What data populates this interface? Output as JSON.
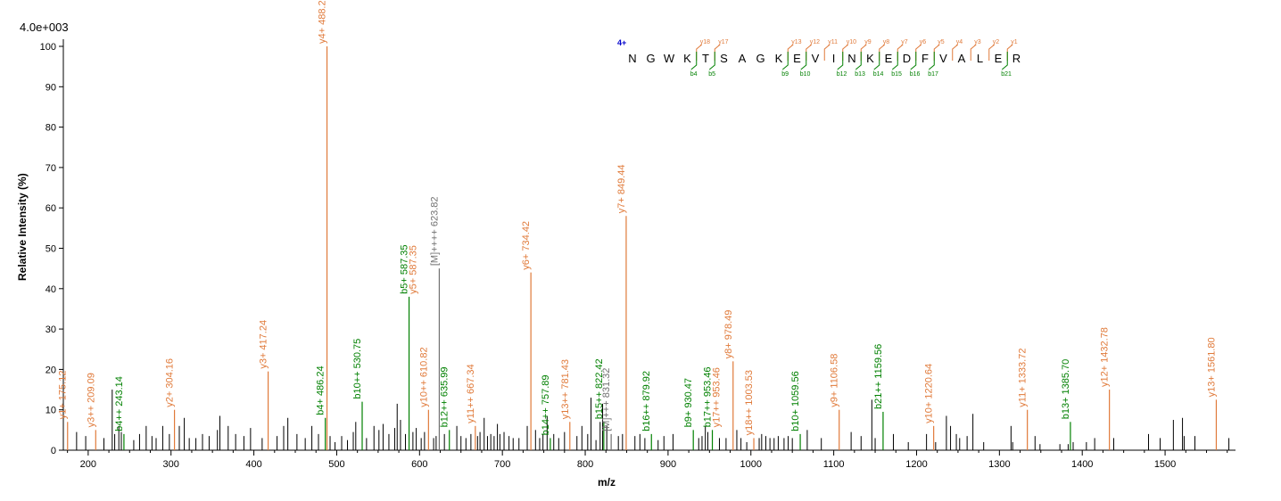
{
  "chart_data": {
    "type": "bar",
    "scale_label": "4.0e+003",
    "xlabel": "m/z",
    "ylabel": "Relative   Intensity (%)",
    "xlim": [
      170,
      1585
    ],
    "ylim": [
      0,
      100
    ],
    "x_ticks": [
      200,
      300,
      400,
      500,
      600,
      700,
      800,
      900,
      1000,
      1100,
      1200,
      1300,
      1400,
      1500
    ],
    "y_ticks": [
      0,
      10,
      20,
      30,
      40,
      50,
      60,
      70,
      80,
      90,
      100
    ],
    "colors": {
      "y_ion": "#e07a3a",
      "b_ion": "#008000",
      "precursor": "#707070",
      "unassigned": "#000000"
    },
    "labeled_peaks": [
      {
        "mz": 175.12,
        "intensity": 7,
        "type": "y",
        "label": "y1+ 175.12"
      },
      {
        "mz": 209.09,
        "intensity": 5,
        "type": "y",
        "label": "y3++ 209.09"
      },
      {
        "mz": 243.14,
        "intensity": 4,
        "type": "b",
        "label": "b4++ 243.14"
      },
      {
        "mz": 304.16,
        "intensity": 10,
        "type": "y",
        "label": "y2+ 304.16"
      },
      {
        "mz": 417.24,
        "intensity": 19.5,
        "type": "y",
        "label": "y3+ 417.24"
      },
      {
        "mz": 486.24,
        "intensity": 8,
        "type": "b",
        "label": "b4+ 486.24"
      },
      {
        "mz": 488.28,
        "intensity": 100,
        "type": "y",
        "label": "y4+ 488.28"
      },
      {
        "mz": 530.75,
        "intensity": 12,
        "type": "b",
        "label": "b10++ 530.75"
      },
      {
        "mz": 587.35,
        "intensity": 38,
        "type": "b",
        "label": "b5+ 587.35"
      },
      {
        "mz": 587.35,
        "intensity": 38,
        "type": "y",
        "label": "y5+ 587.35"
      },
      {
        "mz": 610.82,
        "intensity": 10,
        "type": "y",
        "label": "y10++ 610.82"
      },
      {
        "mz": 623.82,
        "intensity": 45,
        "type": "precursor",
        "label": "[M]++++ 623.82"
      },
      {
        "mz": 635.99,
        "intensity": 5,
        "type": "b",
        "label": "b12++ 635.99"
      },
      {
        "mz": 667.34,
        "intensity": 6,
        "type": "y",
        "label": "y11++ 667.34"
      },
      {
        "mz": 734.42,
        "intensity": 44,
        "type": "y",
        "label": "y6+ 734.42"
      },
      {
        "mz": 757.89,
        "intensity": 3,
        "type": "b",
        "label": "b14++ 757.89"
      },
      {
        "mz": 781.43,
        "intensity": 7,
        "type": "y",
        "label": "y13++ 781.43"
      },
      {
        "mz": 822.42,
        "intensity": 7,
        "type": "b",
        "label": "b15++ 822.42"
      },
      {
        "mz": 831.32,
        "intensity": 4,
        "type": "precursor",
        "label": "[M]+++ 831.32"
      },
      {
        "mz": 849.44,
        "intensity": 58,
        "type": "y",
        "label": "y7+ 849.44"
      },
      {
        "mz": 879.92,
        "intensity": 4,
        "type": "b",
        "label": "b16++ 879.92"
      },
      {
        "mz": 930.47,
        "intensity": 5,
        "type": "b",
        "label": "b9+ 930.47"
      },
      {
        "mz": 953.46,
        "intensity": 5,
        "type": "b",
        "label": "b17++ 953.46"
      },
      {
        "mz": 953.46,
        "intensity": 5,
        "type": "y",
        "label": "y17++ 953.46"
      },
      {
        "mz": 978.49,
        "intensity": 22,
        "type": "y",
        "label": "y8+ 978.49"
      },
      {
        "mz": 1003.53,
        "intensity": 3,
        "type": "y",
        "label": "y18++ 1003.53"
      },
      {
        "mz": 1059.56,
        "intensity": 4,
        "type": "b",
        "label": "b10+ 1059.56"
      },
      {
        "mz": 1106.58,
        "intensity": 10,
        "type": "y",
        "label": "y9+ 1106.58"
      },
      {
        "mz": 1159.56,
        "intensity": 9.5,
        "type": "b",
        "label": "b21++ 1159.56"
      },
      {
        "mz": 1220.64,
        "intensity": 6,
        "type": "y",
        "label": "y10+ 1220.64"
      },
      {
        "mz": 1333.72,
        "intensity": 10,
        "type": "y",
        "label": "y11+ 1333.72"
      },
      {
        "mz": 1385.7,
        "intensity": 7,
        "type": "b",
        "label": "b13+ 1385.70"
      },
      {
        "mz": 1432.78,
        "intensity": 15,
        "type": "y",
        "label": "y12+ 1432.78"
      },
      {
        "mz": 1561.8,
        "intensity": 12.5,
        "type": "y",
        "label": "y13+ 1561.80"
      }
    ],
    "unlabeled_peaks": [
      [
        186,
        4.5
      ],
      [
        197,
        3.5
      ],
      [
        219,
        3
      ],
      [
        229,
        15
      ],
      [
        232,
        4
      ],
      [
        237,
        6
      ],
      [
        240,
        4.5
      ],
      [
        255,
        2.5
      ],
      [
        262,
        4
      ],
      [
        270,
        6
      ],
      [
        277,
        3.5
      ],
      [
        282,
        3
      ],
      [
        290,
        6
      ],
      [
        298,
        4
      ],
      [
        310,
        6
      ],
      [
        316,
        8
      ],
      [
        322,
        3
      ],
      [
        330,
        3
      ],
      [
        338,
        4
      ],
      [
        346,
        3.5
      ],
      [
        356,
        5
      ],
      [
        359,
        8.5
      ],
      [
        369,
        6
      ],
      [
        378,
        4
      ],
      [
        388,
        3.5
      ],
      [
        396,
        5.5
      ],
      [
        410,
        3
      ],
      [
        428,
        3.5
      ],
      [
        436,
        6
      ],
      [
        441,
        8
      ],
      [
        452,
        4
      ],
      [
        462,
        3
      ],
      [
        470,
        6
      ],
      [
        478,
        4
      ],
      [
        492,
        3.5
      ],
      [
        498,
        2
      ],
      [
        506,
        3.5
      ],
      [
        513,
        2.5
      ],
      [
        520,
        4.5
      ],
      [
        523,
        7
      ],
      [
        536,
        3
      ],
      [
        545,
        6
      ],
      [
        551,
        5
      ],
      [
        556,
        6.5
      ],
      [
        563,
        4
      ],
      [
        570,
        5.5
      ],
      [
        573,
        11.5
      ],
      [
        577,
        7.5
      ],
      [
        583,
        4
      ],
      [
        592,
        4.5
      ],
      [
        596,
        5.5
      ],
      [
        602,
        3
      ],
      [
        606,
        4.5
      ],
      [
        617,
        3
      ],
      [
        620,
        3.5
      ],
      [
        630,
        4
      ],
      [
        645,
        6
      ],
      [
        650,
        3.5
      ],
      [
        656,
        3
      ],
      [
        662,
        4
      ],
      [
        670,
        3.5
      ],
      [
        673,
        4.5
      ],
      [
        678,
        8
      ],
      [
        682,
        3.5
      ],
      [
        686,
        4
      ],
      [
        690,
        3.5
      ],
      [
        694,
        6.5
      ],
      [
        697,
        4
      ],
      [
        702,
        4.5
      ],
      [
        708,
        3.5
      ],
      [
        713,
        3
      ],
      [
        720,
        3
      ],
      [
        730,
        6
      ],
      [
        740,
        5
      ],
      [
        745,
        3
      ],
      [
        749,
        4
      ],
      [
        754,
        8.5
      ],
      [
        762,
        4
      ],
      [
        768,
        3
      ],
      [
        775,
        4.5
      ],
      [
        790,
        3.5
      ],
      [
        796,
        6
      ],
      [
        803,
        4
      ],
      [
        807,
        13
      ],
      [
        813,
        2.5
      ],
      [
        818,
        7
      ],
      [
        821,
        11.5
      ],
      [
        826,
        6
      ],
      [
        840,
        3.5
      ],
      [
        845,
        4
      ],
      [
        860,
        3.5
      ],
      [
        866,
        4
      ],
      [
        872,
        3
      ],
      [
        888,
        2.5
      ],
      [
        895,
        3.5
      ],
      [
        906,
        4
      ],
      [
        937,
        3
      ],
      [
        941,
        3.5
      ],
      [
        945,
        6
      ],
      [
        948,
        4.5
      ],
      [
        962,
        3
      ],
      [
        970,
        3
      ],
      [
        983,
        5
      ],
      [
        988,
        3
      ],
      [
        995,
        2
      ],
      [
        1010,
        3
      ],
      [
        1013,
        4
      ],
      [
        1018,
        3.5
      ],
      [
        1023,
        3
      ],
      [
        1028,
        3
      ],
      [
        1033,
        3.5
      ],
      [
        1040,
        3
      ],
      [
        1045,
        3.5
      ],
      [
        1050,
        3
      ],
      [
        1068,
        5
      ],
      [
        1085,
        3
      ],
      [
        1121,
        4.5
      ],
      [
        1133,
        3.5
      ],
      [
        1146,
        12.5
      ],
      [
        1150,
        3
      ],
      [
        1172,
        4
      ],
      [
        1190,
        2
      ],
      [
        1212,
        4
      ],
      [
        1223,
        2
      ],
      [
        1236,
        8.5
      ],
      [
        1241,
        6
      ],
      [
        1248,
        4
      ],
      [
        1252,
        3
      ],
      [
        1261,
        3.5
      ],
      [
        1268,
        9
      ],
      [
        1281,
        2
      ],
      [
        1314,
        6
      ],
      [
        1316,
        2
      ],
      [
        1343,
        3.5
      ],
      [
        1349,
        1.5
      ],
      [
        1373,
        1.5
      ],
      [
        1383,
        1.5
      ],
      [
        1389,
        2
      ],
      [
        1405,
        2
      ],
      [
        1415,
        3
      ],
      [
        1438,
        3
      ],
      [
        1480,
        4
      ],
      [
        1494,
        3
      ],
      [
        1510,
        7.5
      ],
      [
        1521,
        8
      ],
      [
        1523,
        3.5
      ],
      [
        1536,
        3.5
      ],
      [
        1577,
        3
      ]
    ],
    "sequence": {
      "charge_label": "4+",
      "residues": [
        "N",
        "G",
        "W",
        "K",
        "T",
        "S",
        "A",
        "G",
        "K",
        "E",
        "V",
        "I",
        "N",
        "K",
        "E",
        "D",
        "F",
        "V",
        "A",
        "L",
        "E",
        "R"
      ],
      "y_ions": [
        {
          "label": "y18",
          "after": 4
        },
        {
          "label": "y17",
          "after": 5
        },
        {
          "label": "y13",
          "after": 9
        },
        {
          "label": "y12",
          "after": 10
        },
        {
          "label": "y11",
          "after": 11
        },
        {
          "label": "y10",
          "after": 12
        },
        {
          "label": "y9",
          "after": 13
        },
        {
          "label": "y8",
          "after": 14
        },
        {
          "label": "y7",
          "after": 15
        },
        {
          "label": "y6",
          "after": 16
        },
        {
          "label": "y5",
          "after": 17
        },
        {
          "label": "y4",
          "after": 18
        },
        {
          "label": "y3",
          "after": 19
        },
        {
          "label": "y2",
          "after": 20
        },
        {
          "label": "y1",
          "after": 21
        }
      ],
      "b_ions": [
        {
          "label": "b4",
          "after": 4
        },
        {
          "label": "b5",
          "after": 5
        },
        {
          "label": "b9",
          "after": 9
        },
        {
          "label": "b10",
          "after": 10
        },
        {
          "label": "b12",
          "after": 12
        },
        {
          "label": "b13",
          "after": 13
        },
        {
          "label": "b14",
          "after": 14
        },
        {
          "label": "b15",
          "after": 15
        },
        {
          "label": "b16",
          "after": 16
        },
        {
          "label": "b17",
          "after": 17
        },
        {
          "label": "b21",
          "after": 21
        }
      ]
    }
  }
}
